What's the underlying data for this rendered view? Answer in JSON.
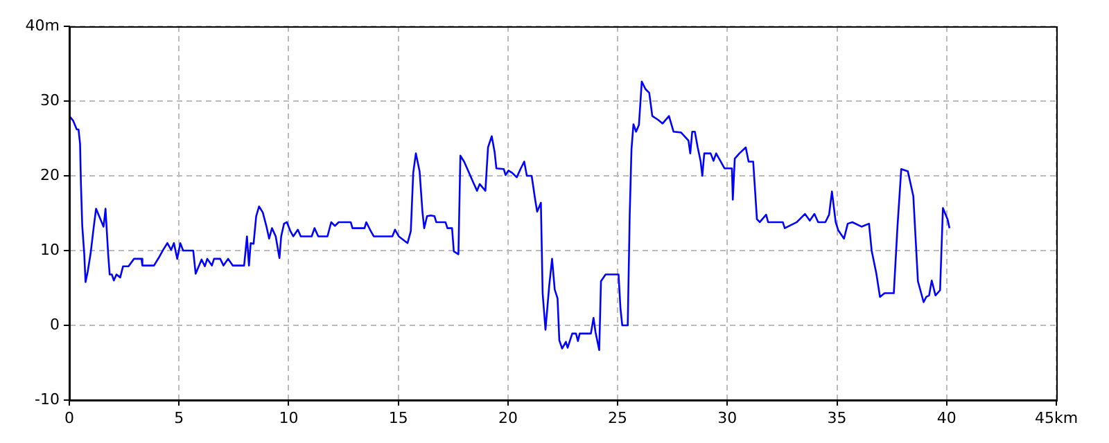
{
  "chart_data": {
    "type": "line",
    "grid": true,
    "legend": false,
    "marker": "none",
    "line_style": "solid",
    "xlim": [
      0,
      45
    ],
    "xticks": [
      0,
      5,
      10,
      15,
      20,
      25,
      30,
      35,
      40,
      {
        "value": 45,
        "label": "45km"
      }
    ],
    "ylim": [
      -10,
      40
    ],
    "yticks": [
      -10,
      0,
      10,
      20,
      30,
      {
        "value": 40,
        "label": "40m"
      }
    ],
    "series": [
      {
        "color": "#0000ff",
        "x": [
          0,
          0.17,
          0.34,
          0.42,
          0.49,
          0.53,
          0.59,
          0.68,
          0.74,
          0.84,
          0.97,
          1.12,
          1.22,
          1.56,
          1.6,
          1.65,
          1.77,
          1.84,
          1.94,
          2.03,
          2.15,
          2.32,
          2.45,
          2.7,
          2.95,
          3.29,
          3.33,
          3.86,
          4.07,
          4.28,
          4.47,
          4.64,
          4.77,
          4.92,
          5.06,
          5.19,
          5.65,
          5.76,
          6.03,
          6.18,
          6.29,
          6.5,
          6.6,
          6.88,
          7.03,
          7.24,
          7.45,
          7.66,
          7.97,
          8.1,
          8.19,
          8.27,
          8.4,
          8.52,
          8.65,
          8.82,
          8.99,
          9.11,
          9.24,
          9.41,
          9.58,
          9.66,
          9.79,
          9.92,
          10.08,
          10.21,
          10.42,
          10.55,
          11.05,
          11.18,
          11.35,
          11.77,
          11.94,
          12.11,
          12.28,
          12.83,
          12.91,
          13.46,
          13.54,
          13.71,
          13.88,
          14.73,
          14.85,
          15.02,
          15.42,
          15.57,
          15.68,
          15.8,
          15.97,
          16.1,
          16.18,
          16.31,
          16.48,
          16.65,
          16.73,
          17.15,
          17.24,
          17.45,
          17.53,
          17.74,
          17.83,
          18,
          18.21,
          18.42,
          18.59,
          18.71,
          18.97,
          19.09,
          19.26,
          19.39,
          19.47,
          19.81,
          19.89,
          20.02,
          20.19,
          20.4,
          20.57,
          20.74,
          20.86,
          21.08,
          21.24,
          21.33,
          21.5,
          21.58,
          21.71,
          21.88,
          22.01,
          22.13,
          22.26,
          22.34,
          22.47,
          22.64,
          22.72,
          22.93,
          23.1,
          23.19,
          23.27,
          23.78,
          23.9,
          23.99,
          24.16,
          24.24,
          24.45,
          25.04,
          25.13,
          25.21,
          25.46,
          25.55,
          25.63,
          25.72,
          25.84,
          25.97,
          26.1,
          26.27,
          26.44,
          26.58,
          26.84,
          27.05,
          27.34,
          27.55,
          27.89,
          28.23,
          28.31,
          28.4,
          28.52,
          28.65,
          28.78,
          28.86,
          28.95,
          29.24,
          29.37,
          29.49,
          29.7,
          29.87,
          30.21,
          30.25,
          30.34,
          30.55,
          30.84,
          30.97,
          31.18,
          31.35,
          31.48,
          31.77,
          31.86,
          32.53,
          32.62,
          33.17,
          33.54,
          33.76,
          33.97,
          34.14,
          34.47,
          34.64,
          34.77,
          34.94,
          35.06,
          35.32,
          35.49,
          35.7,
          36.12,
          36.46,
          36.58,
          36.79,
          36.96,
          37.17,
          37.59,
          37.76,
          37.93,
          38.23,
          38.48,
          38.69,
          38.95,
          39.07,
          39.2,
          39.32,
          39.49,
          39.7,
          39.83,
          40.04,
          40.13
        ],
        "values": [
          28,
          27.4,
          26.2,
          26.2,
          24.3,
          18.9,
          13.3,
          9.6,
          5.8,
          7.2,
          9.6,
          13.3,
          15.6,
          13.2,
          14.2,
          15.6,
          9.6,
          6.8,
          6.8,
          6,
          6.8,
          6.4,
          7.9,
          7.9,
          8.9,
          8.9,
          8,
          8,
          9,
          10.1,
          11,
          10.1,
          11,
          8.9,
          11,
          10,
          10,
          6.9,
          8.8,
          7.9,
          8.9,
          8,
          8.9,
          8.9,
          8,
          8.9,
          8,
          8,
          8,
          11.9,
          8,
          11,
          10.9,
          14.6,
          15.9,
          15.1,
          13.2,
          11.6,
          13,
          11.9,
          9,
          11.9,
          13.6,
          13.8,
          12.6,
          11.9,
          12.8,
          11.9,
          11.9,
          13,
          11.9,
          11.9,
          13.8,
          13.3,
          13.8,
          13.8,
          13,
          13,
          13.8,
          12.8,
          11.9,
          11.9,
          12.8,
          11.9,
          11,
          12.6,
          20.4,
          23,
          20.6,
          15.2,
          13,
          14.6,
          14.7,
          14.6,
          13.8,
          13.8,
          13,
          13,
          9.9,
          9.5,
          22.7,
          21.9,
          20.5,
          19.1,
          18,
          18.9,
          18,
          23.8,
          25.3,
          23.2,
          21,
          20.9,
          20.1,
          20.7,
          20.4,
          19.8,
          20.9,
          21.9,
          20,
          20,
          16.8,
          15.2,
          16.4,
          4.3,
          -0.6,
          5.3,
          8.9,
          4.8,
          3.6,
          -2,
          -3.1,
          -2.2,
          -3,
          -1.1,
          -1.1,
          -2.1,
          -1.1,
          -1.1,
          1,
          -0.9,
          -3.3,
          5.9,
          6.8,
          6.8,
          2.2,
          0,
          0,
          14.8,
          23.5,
          26.9,
          25.9,
          26.8,
          32.6,
          31.6,
          31.1,
          28,
          27.5,
          27,
          28,
          25.9,
          25.8,
          24.7,
          23,
          25.9,
          25.9,
          23.8,
          22,
          20,
          23,
          23,
          22,
          23,
          21.9,
          21,
          21,
          16.8,
          22.3,
          23,
          23.8,
          21.9,
          21.9,
          14.2,
          13.8,
          14.8,
          13.8,
          13.8,
          13,
          13.8,
          14.9,
          14,
          14.9,
          13.8,
          13.8,
          14.8,
          17.9,
          13.8,
          12.7,
          11.6,
          13.6,
          13.8,
          13.2,
          13.6,
          10,
          7,
          3.8,
          4.3,
          4.3,
          13.3,
          20.9,
          20.6,
          17.3,
          5.9,
          3.1,
          3.8,
          4,
          6,
          4,
          4.7,
          15.7,
          14.2,
          13
        ]
      }
    ]
  }
}
